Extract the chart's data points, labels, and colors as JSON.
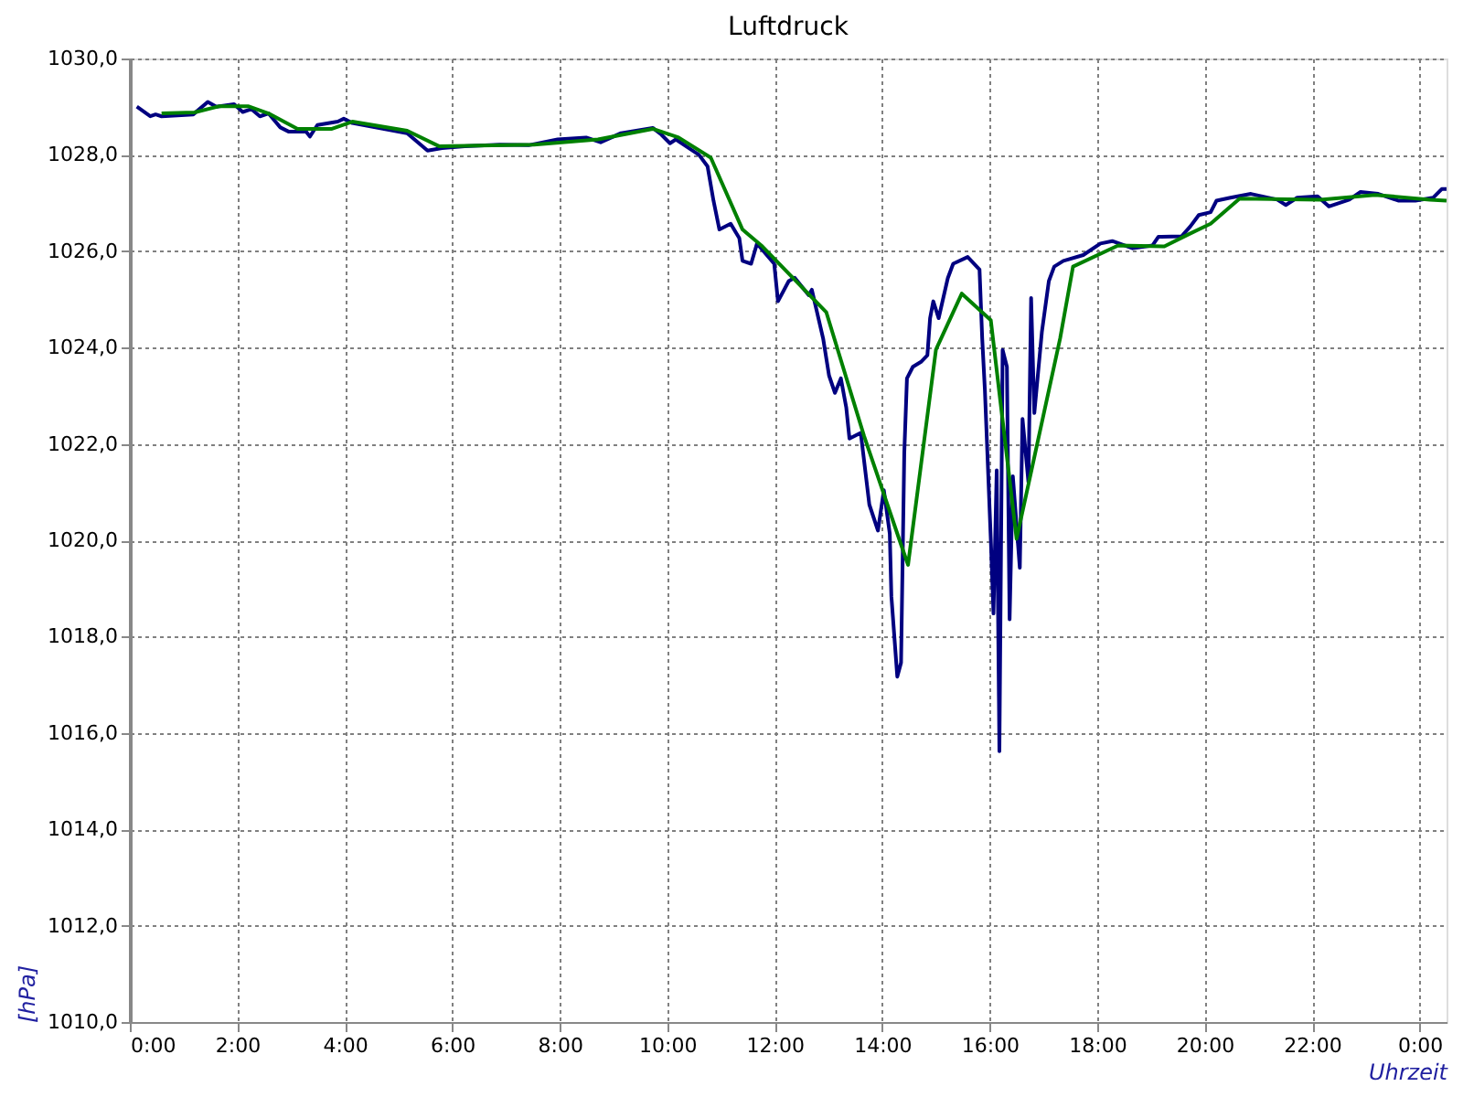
{
  "chart_data": {
    "type": "line",
    "title": "Luftdruck",
    "xlabel": "Uhrzeit",
    "ylabel": "[hPa]",
    "xlim": [
      0,
      24.5
    ],
    "ylim": [
      1010,
      1030
    ],
    "xticks": [
      {
        "value": 0,
        "label": "0:00"
      },
      {
        "value": 2,
        "label": "2:00"
      },
      {
        "value": 4,
        "label": "4:00"
      },
      {
        "value": 6,
        "label": "6:00"
      },
      {
        "value": 8,
        "label": "8:00"
      },
      {
        "value": 10,
        "label": "10:00"
      },
      {
        "value": 12,
        "label": "12:00"
      },
      {
        "value": 14,
        "label": "14:00"
      },
      {
        "value": 16,
        "label": "16:00"
      },
      {
        "value": 18,
        "label": "18:00"
      },
      {
        "value": 20,
        "label": "20:00"
      },
      {
        "value": 22,
        "label": "22:00"
      },
      {
        "value": 24,
        "label": "0:00"
      }
    ],
    "yticks": [
      {
        "value": 1010,
        "label": "1010,0"
      },
      {
        "value": 1012,
        "label": "1012,0"
      },
      {
        "value": 1014,
        "label": "1014,0"
      },
      {
        "value": 1016,
        "label": "1016,0"
      },
      {
        "value": 1018,
        "label": "1018,0"
      },
      {
        "value": 1020,
        "label": "1020,0"
      },
      {
        "value": 1022,
        "label": "1022,0"
      },
      {
        "value": 1024,
        "label": "1024,0"
      },
      {
        "value": 1026,
        "label": "1026,0"
      },
      {
        "value": 1028,
        "label": "1028,0"
      },
      {
        "value": 1030,
        "label": "1030,0"
      }
    ],
    "grid": true,
    "marker": "none",
    "line_style": "solid",
    "series": [
      {
        "color": "#000080",
        "x": [
          0.13,
          0.38,
          0.48,
          0.59,
          1.18,
          1.45,
          1.61,
          1.94,
          2.1,
          2.26,
          2.42,
          2.58,
          2.8,
          2.96,
          3.28,
          3.35,
          3.49,
          3.87,
          3.98,
          4.14,
          4.73,
          5.16,
          5.54,
          5.81,
          6.23,
          6.88,
          7.42,
          7.96,
          8.49,
          8.76,
          9.14,
          9.73,
          9.89,
          10.05,
          10.16,
          10.43,
          10.59,
          10.75,
          10.86,
          10.97,
          11.18,
          11.34,
          11.4,
          11.56,
          11.67,
          11.99,
          12.06,
          12.26,
          12.37,
          12.63,
          12.69,
          12.9,
          13.01,
          13.12,
          13.23,
          13.33,
          13.39,
          13.6,
          13.76,
          13.92,
          14.03,
          14.14,
          14.17,
          14.28,
          14.35,
          14.41,
          14.46,
          14.57,
          14.73,
          14.84,
          14.89,
          14.95,
          15.05,
          15.22,
          15.32,
          15.59,
          15.81,
          15.86,
          15.91,
          16.02,
          16.07,
          16.13,
          16.18,
          16.24,
          16.32,
          16.37,
          16.43,
          16.56,
          16.61,
          16.72,
          16.77,
          16.83,
          16.97,
          17.1,
          17.2,
          17.37,
          17.74,
          18.06,
          18.28,
          18.66,
          19.03,
          19.14,
          19.57,
          19.73,
          19.89,
          20.11,
          20.22,
          20.48,
          20.86,
          21.35,
          21.51,
          21.72,
          22.1,
          22.31,
          22.69,
          22.9,
          23.23,
          23.6,
          23.92,
          24.25,
          24.41,
          24.5
        ],
        "values": [
          1029.0,
          1028.8,
          1028.84,
          1028.8,
          1028.84,
          1029.1,
          1029.0,
          1029.05,
          1028.89,
          1028.95,
          1028.8,
          1028.86,
          1028.57,
          1028.48,
          1028.48,
          1028.38,
          1028.62,
          1028.69,
          1028.75,
          1028.66,
          1028.54,
          1028.45,
          1028.09,
          1028.14,
          1028.18,
          1028.21,
          1028.2,
          1028.32,
          1028.36,
          1028.26,
          1028.45,
          1028.56,
          1028.42,
          1028.24,
          1028.32,
          1028.12,
          1028.0,
          1027.76,
          1027.05,
          1026.45,
          1026.57,
          1026.27,
          1025.8,
          1025.74,
          1026.16,
          1025.74,
          1024.96,
          1025.38,
          1025.45,
          1025.09,
          1025.2,
          1024.19,
          1023.42,
          1023.06,
          1023.36,
          1022.76,
          1022.11,
          1022.23,
          1020.74,
          1020.2,
          1021.04,
          1020.14,
          1018.84,
          1017.17,
          1017.46,
          1021.81,
          1023.36,
          1023.6,
          1023.71,
          1023.84,
          1024.61,
          1024.96,
          1024.61,
          1025.44,
          1025.74,
          1025.88,
          1025.62,
          1024.19,
          1023.12,
          1020.02,
          1018.48,
          1021.45,
          1015.62,
          1023.95,
          1023.6,
          1018.36,
          1021.33,
          1019.43,
          1022.52,
          1021.21,
          1025.03,
          1022.64,
          1024.32,
          1025.38,
          1025.68,
          1025.8,
          1025.92,
          1026.16,
          1026.21,
          1026.06,
          1026.12,
          1026.3,
          1026.31,
          1026.51,
          1026.75,
          1026.81,
          1027.05,
          1027.11,
          1027.19,
          1027.07,
          1026.96,
          1027.11,
          1027.14,
          1026.93,
          1027.07,
          1027.23,
          1027.19,
          1027.05,
          1027.05,
          1027.11,
          1027.29,
          1027.29
        ]
      },
      {
        "color": "#008000",
        "x": [
          0.59,
          1.2,
          1.67,
          2.2,
          2.58,
          3.12,
          3.76,
          4.14,
          5.16,
          5.75,
          7.52,
          8.71,
          9.73,
          10.21,
          10.81,
          11.4,
          11.77,
          12.96,
          13.66,
          14.35,
          14.48,
          15.0,
          15.48,
          16.02,
          16.5,
          17.31,
          17.55,
          18.39,
          19.25,
          19.68,
          20.11,
          20.65,
          22.15,
          23.17,
          24.19,
          24.5
        ],
        "values": [
          1028.86,
          1028.88,
          1029.01,
          1029.01,
          1028.86,
          1028.54,
          1028.54,
          1028.69,
          1028.5,
          1028.18,
          1028.21,
          1028.32,
          1028.54,
          1028.36,
          1027.94,
          1026.45,
          1026.1,
          1024.73,
          1022.17,
          1019.91,
          1019.49,
          1023.96,
          1025.12,
          1024.57,
          1020.03,
          1024.19,
          1025.68,
          1026.12,
          1026.1,
          1026.34,
          1026.57,
          1027.09,
          1027.07,
          1027.17,
          1027.07,
          1027.05
        ]
      }
    ]
  }
}
